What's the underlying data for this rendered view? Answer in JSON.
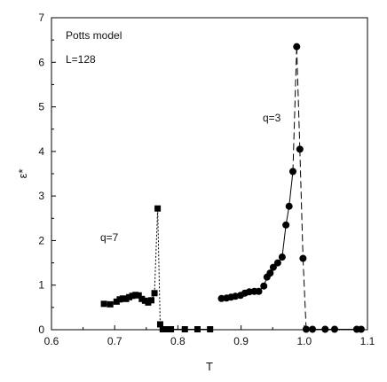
{
  "chart_data": {
    "type": "scatter",
    "xlabel": "T",
    "ylabel": "ε*",
    "xlim": [
      0.6,
      1.1
    ],
    "ylim": [
      0,
      7
    ],
    "xticks": [
      "0.6",
      "0.7",
      "0.8",
      "0.9",
      "1.0",
      "1.1"
    ],
    "yticks": [
      "0",
      "1",
      "2",
      "3",
      "4",
      "5",
      "6",
      "7"
    ],
    "grid": false,
    "annotations": {
      "model": "Potts model",
      "size": "L=128",
      "q7": "q=7",
      "q3": "q=3"
    },
    "series": [
      {
        "name": "q=7",
        "marker": "square",
        "x": [
          0.683,
          0.693,
          0.703,
          0.708,
          0.713,
          0.718,
          0.723,
          0.728,
          0.733,
          0.738,
          0.743,
          0.748,
          0.753,
          0.758,
          0.763,
          0.768,
          0.772,
          0.776,
          0.781,
          0.789,
          0.811,
          0.831,
          0.851
        ],
        "y": [
          0.58,
          0.57,
          0.63,
          0.68,
          0.7,
          0.69,
          0.73,
          0.76,
          0.78,
          0.77,
          0.69,
          0.65,
          0.61,
          0.66,
          0.82,
          2.72,
          0.12,
          0.01,
          0.01,
          0.01,
          0.01,
          0.01,
          0.01
        ]
      },
      {
        "name": "q=3",
        "marker": "circle",
        "x": [
          0.869,
          0.877,
          0.884,
          0.891,
          0.899,
          0.906,
          0.913,
          0.921,
          0.928,
          0.936,
          0.941,
          0.946,
          0.951,
          0.958,
          0.965,
          0.971,
          0.976,
          0.982,
          0.988,
          0.993,
          0.998,
          1.003,
          1.013,
          1.033,
          1.048,
          1.083,
          1.09
        ],
        "y": [
          0.7,
          0.71,
          0.73,
          0.75,
          0.77,
          0.82,
          0.85,
          0.86,
          0.86,
          0.98,
          1.18,
          1.27,
          1.4,
          1.5,
          1.63,
          2.35,
          2.77,
          3.55,
          6.35,
          4.05,
          1.6,
          0.01,
          0.01,
          0.01,
          0.01,
          0.01,
          0.01
        ]
      }
    ]
  }
}
